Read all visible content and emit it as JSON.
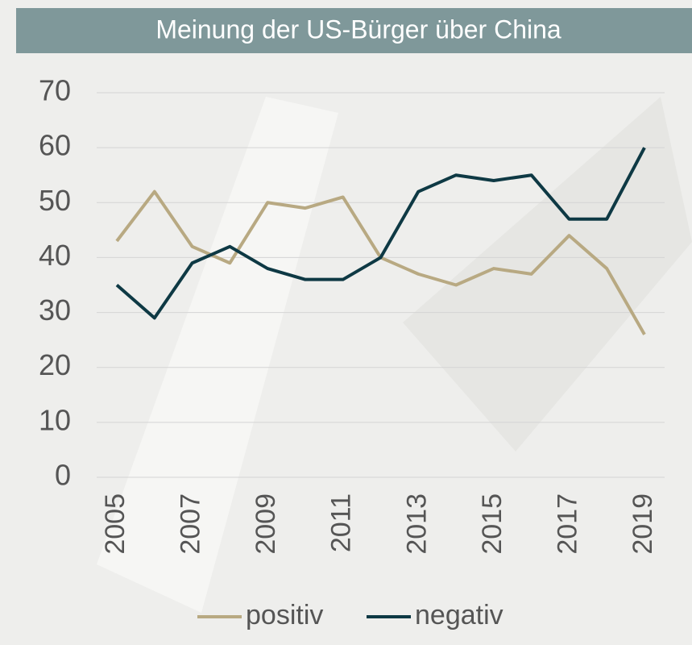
{
  "chart_data": {
    "type": "line",
    "title": "Meinung der US-Bürger über China",
    "x": [
      2005,
      2006,
      2007,
      2008,
      2009,
      2010,
      2011,
      2012,
      2013,
      2014,
      2015,
      2016,
      2017,
      2018,
      2019
    ],
    "series": [
      {
        "name": "positiv",
        "color": "#b8a982",
        "values": [
          43,
          52,
          42,
          39,
          50,
          49,
          51,
          40,
          37,
          35,
          38,
          37,
          44,
          38,
          26
        ]
      },
      {
        "name": "negativ",
        "color": "#0e3944",
        "values": [
          35,
          29,
          39,
          42,
          38,
          36,
          36,
          40,
          52,
          55,
          54,
          55,
          47,
          47,
          60
        ]
      }
    ],
    "xlim": [
      2005,
      2019
    ],
    "xticks": [
      2005,
      2007,
      2009,
      2011,
      2013,
      2015,
      2017,
      2019
    ],
    "ylim": [
      0,
      70
    ],
    "yticks": [
      0,
      10,
      20,
      30,
      40,
      50,
      60,
      70
    ],
    "grid": true,
    "legend": "bottom"
  }
}
